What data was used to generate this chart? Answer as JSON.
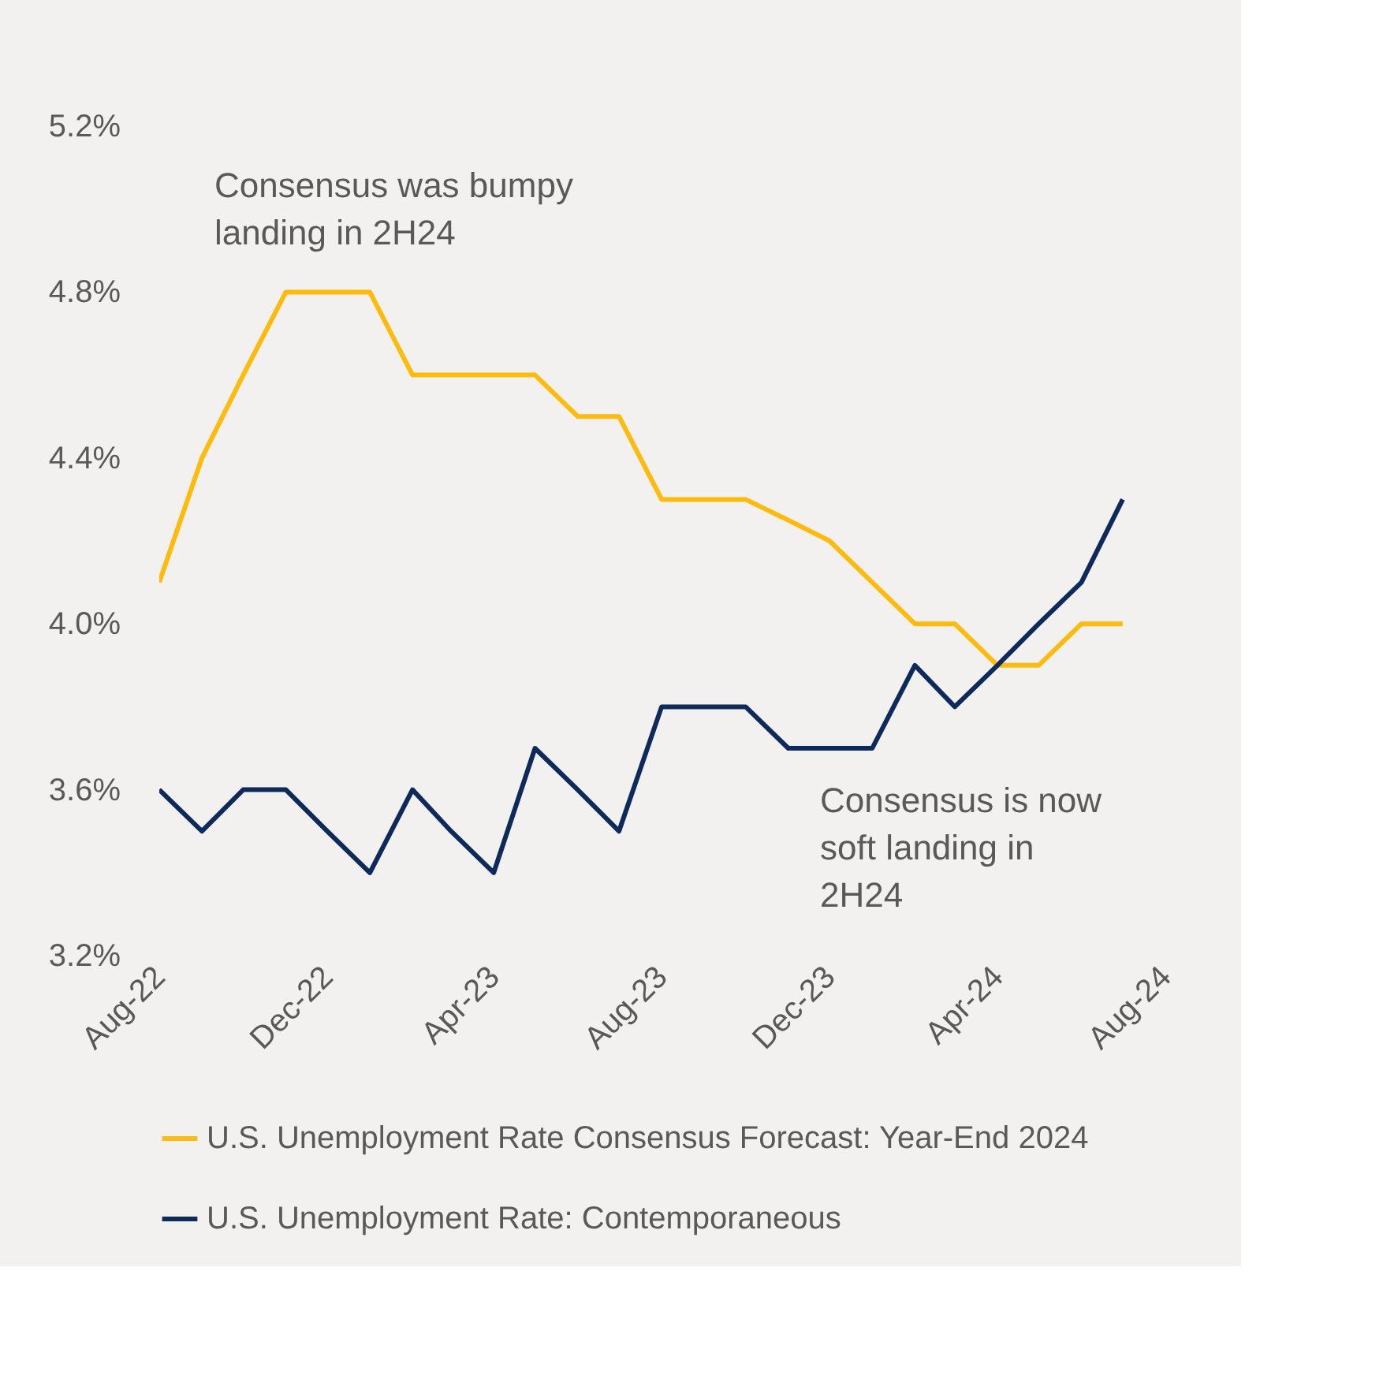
{
  "chart_data": {
    "type": "line",
    "x": [
      "2022-08",
      "2022-09",
      "2022-10",
      "2022-11",
      "2022-12",
      "2023-01",
      "2023-02",
      "2023-03",
      "2023-04",
      "2023-05",
      "2023-06",
      "2023-07",
      "2023-08",
      "2023-09",
      "2023-10",
      "2023-11",
      "2023-12",
      "2024-01",
      "2024-02",
      "2024-03",
      "2024-04",
      "2024-05",
      "2024-06",
      "2024-07"
    ],
    "series": [
      {
        "name": "U.S. Unemployment Rate Consensus Forecast: Year-End 2024",
        "color": "#fdbb0e",
        "values": [
          4.1,
          4.4,
          4.6,
          4.8,
          4.8,
          4.8,
          4.6,
          4.6,
          4.6,
          4.6,
          4.5,
          4.5,
          4.3,
          4.3,
          4.3,
          4.25,
          4.2,
          4.1,
          4.0,
          4.0,
          3.9,
          3.9,
          4.0,
          4.0
        ]
      },
      {
        "name": "U.S. Unemployment Rate: Contemporaneous",
        "color": "#0d2a5b",
        "values": [
          3.6,
          3.5,
          3.6,
          3.6,
          3.5,
          3.4,
          3.6,
          3.5,
          3.4,
          3.7,
          3.6,
          3.5,
          3.8,
          3.8,
          3.8,
          3.7,
          3.7,
          3.7,
          3.9,
          3.8,
          3.9,
          4.0,
          4.1,
          4.3
        ]
      }
    ],
    "xlim": [
      "2022-08",
      "2024-08"
    ],
    "xticks": [
      {
        "value": "2022-08",
        "label": "Aug-22"
      },
      {
        "value": "2022-12",
        "label": "Dec-22"
      },
      {
        "value": "2023-04",
        "label": "Apr-23"
      },
      {
        "value": "2023-08",
        "label": "Aug-23"
      },
      {
        "value": "2023-12",
        "label": "Dec-23"
      },
      {
        "value": "2024-04",
        "label": "Apr-24"
      },
      {
        "value": "2024-08",
        "label": "Aug-24"
      }
    ],
    "ylim": [
      3.2,
      5.2
    ],
    "yticks": [
      {
        "value": 3.2,
        "label": "3.2%"
      },
      {
        "value": 3.6,
        "label": "3.6%"
      },
      {
        "value": 4.0,
        "label": "4.0%"
      },
      {
        "value": 4.4,
        "label": "4.4%"
      },
      {
        "value": 4.8,
        "label": "4.8%"
      },
      {
        "value": 5.2,
        "label": "5.2%"
      }
    ],
    "annotations": [
      "Consensus was bumpy landing in 2H24",
      "Consensus is now soft landing in 2H24"
    ],
    "grid": false,
    "legend": "bottom",
    "marker": "none",
    "line_style": "solid"
  }
}
